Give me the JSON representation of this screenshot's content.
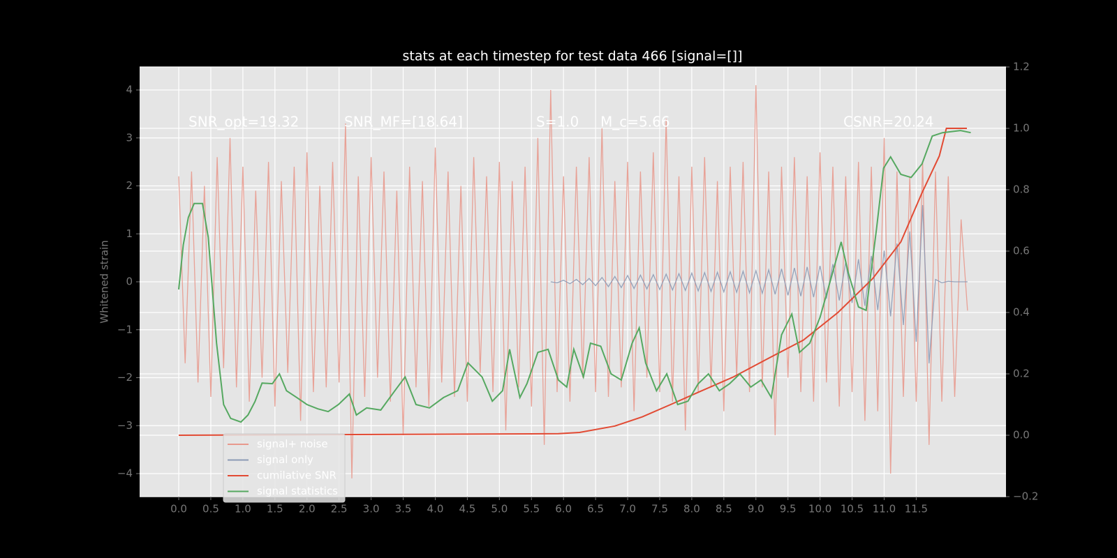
{
  "chart_data": {
    "type": "line",
    "title": "stats at each timestep for test data 466 [signal=[]]",
    "ylabel": "Whitened strain",
    "annotations": [
      "SNR_opt=19.32",
      "SNR_MF=[18.64]",
      "S=1.0",
      "M_c=5.66",
      "CSNR=20.24"
    ],
    "xlim": [
      -0.61,
      12.9
    ],
    "ylim": [
      -4.48,
      4.48
    ],
    "y2lim": [
      -0.2,
      1.2
    ],
    "xticks": [
      {
        "value": 0,
        "label": "0.0"
      },
      0.5,
      {
        "value": 1,
        "label": "1.0"
      },
      1.5,
      {
        "value": 2,
        "label": "2.0"
      },
      2.5,
      {
        "value": 3,
        "label": "3.0"
      },
      3.5,
      {
        "value": 4,
        "label": "4.0"
      },
      4.5,
      {
        "value": 5,
        "label": "5.0"
      },
      5.5,
      {
        "value": 6,
        "label": "6.0"
      },
      6.5,
      {
        "value": 7,
        "label": "7.0"
      },
      7.5,
      {
        "value": 8,
        "label": "8.0"
      },
      8.5,
      {
        "value": 9,
        "label": "9.0"
      },
      9.5,
      {
        "value": 10,
        "label": "10.0"
      },
      10.5,
      {
        "value": 11,
        "label": "11.0"
      },
      11.5
    ],
    "yticks": [
      {
        "value": -4,
        "label": "−4"
      },
      {
        "value": -3,
        "label": "−3"
      },
      {
        "value": -2,
        "label": "−2"
      },
      {
        "value": -1,
        "label": "−1"
      },
      0,
      1,
      2,
      3,
      4
    ],
    "y2ticks": [
      {
        "value": -0.2,
        "label": "−0.2"
      },
      {
        "value": 0,
        "label": "0.0"
      },
      0.2,
      0.4,
      0.6,
      0.8,
      {
        "value": 1,
        "label": "1.0"
      },
      1.2
    ],
    "grid": true,
    "legend": "lower left",
    "series": [
      {
        "name": "signal+ noise",
        "color": "#e8998d",
        "x": [
          0.0,
          0.1,
          0.2,
          0.3,
          0.4,
          0.5,
          0.6,
          0.7,
          0.8,
          0.9,
          1.0,
          1.1,
          1.2,
          1.3,
          1.4,
          1.5,
          1.6,
          1.7,
          1.8,
          1.9,
          2.0,
          2.1,
          2.2,
          2.3,
          2.4,
          2.5,
          2.6,
          2.7,
          2.8,
          2.9,
          3.0,
          3.1,
          3.2,
          3.3,
          3.4,
          3.5,
          3.6,
          3.7,
          3.8,
          3.9,
          4.0,
          4.1,
          4.2,
          4.3,
          4.4,
          4.5,
          4.6,
          4.7,
          4.8,
          4.9,
          5.0,
          5.1,
          5.2,
          5.3,
          5.4,
          5.5,
          5.6,
          5.7,
          5.8,
          5.9,
          6.0,
          6.1,
          6.2,
          6.3,
          6.4,
          6.5,
          6.6,
          6.7,
          6.8,
          6.9,
          7.0,
          7.1,
          7.2,
          7.3,
          7.4,
          7.5,
          7.6,
          7.7,
          7.8,
          7.9,
          8.0,
          8.1,
          8.2,
          8.3,
          8.4,
          8.5,
          8.6,
          8.7,
          8.8,
          8.9,
          9.0,
          9.1,
          9.2,
          9.3,
          9.4,
          9.5,
          9.6,
          9.7,
          9.8,
          9.9,
          10.0,
          10.1,
          10.2,
          10.3,
          10.4,
          10.5,
          10.6,
          10.7,
          10.8,
          10.9,
          11.0,
          11.1,
          11.2,
          11.3,
          11.4,
          11.5,
          11.6,
          11.7,
          11.8,
          11.9,
          12.0,
          12.1,
          12.2,
          12.3
        ],
        "values": [
          2.2,
          -1.7,
          2.3,
          -2.1,
          2.0,
          -2.4,
          2.6,
          -1.8,
          3.0,
          -2.2,
          2.4,
          -2.5,
          1.9,
          -2.0,
          2.5,
          -2.6,
          2.1,
          -1.9,
          2.4,
          -2.9,
          2.7,
          -2.3,
          2.0,
          -2.2,
          2.5,
          -2.1,
          3.3,
          -4.1,
          2.2,
          -2.4,
          2.6,
          -2.0,
          2.3,
          -2.5,
          1.9,
          -3.2,
          2.4,
          -2.2,
          2.1,
          -2.6,
          2.8,
          -2.1,
          2.3,
          -2.4,
          2.0,
          -2.5,
          2.6,
          -1.9,
          2.2,
          -2.3,
          2.5,
          -3.1,
          2.1,
          -2.2,
          2.4,
          -2.6,
          3.0,
          -3.4,
          4.0,
          -2.3,
          2.2,
          -2.5,
          2.4,
          -2.0,
          2.6,
          -2.3,
          3.2,
          -2.4,
          2.1,
          -2.2,
          2.5,
          -2.7,
          2.3,
          -2.0,
          2.7,
          -2.3,
          3.4,
          -2.5,
          2.2,
          -3.1,
          2.4,
          -2.3,
          2.6,
          -2.2,
          2.1,
          -2.7,
          2.4,
          -2.0,
          2.5,
          -2.3,
          4.1,
          -2.2,
          2.3,
          -3.2,
          2.4,
          -2.0,
          2.6,
          -2.3,
          2.2,
          -2.5,
          2.7,
          -2.1,
          2.4,
          -2.6,
          2.2,
          -2.3,
          2.5,
          -2.9,
          2.4,
          -2.7,
          3.0,
          -4.0,
          2.3,
          -2.4,
          2.2,
          -2.5,
          2.5,
          -3.4,
          2.3,
          -2.5,
          2.2,
          -2.4,
          1.3,
          -0.6
        ]
      },
      {
        "name": "signal only",
        "color": "#8c9ab5",
        "x": [
          5.8,
          5.9,
          6.0,
          6.1,
          6.2,
          6.3,
          6.4,
          6.5,
          6.6,
          6.7,
          6.8,
          6.9,
          7.0,
          7.1,
          7.2,
          7.3,
          7.4,
          7.5,
          7.6,
          7.7,
          7.8,
          7.9,
          8.0,
          8.1,
          8.2,
          8.3,
          8.4,
          8.5,
          8.6,
          8.7,
          8.8,
          8.9,
          9.0,
          9.1,
          9.2,
          9.3,
          9.4,
          9.5,
          9.6,
          9.7,
          9.8,
          9.9,
          10.0,
          10.1,
          10.2,
          10.3,
          10.4,
          10.5,
          10.6,
          10.7,
          10.8,
          10.9,
          11.0,
          11.1,
          11.2,
          11.3,
          11.4,
          11.5,
          11.6,
          11.7,
          11.8,
          11.9,
          12.0,
          12.1,
          12.2,
          12.3
        ],
        "values": [
          0.0,
          -0.02,
          0.03,
          -0.04,
          0.05,
          -0.06,
          0.07,
          -0.08,
          0.09,
          -0.1,
          0.11,
          -0.12,
          0.13,
          -0.14,
          0.14,
          -0.15,
          0.15,
          -0.16,
          0.16,
          -0.17,
          0.17,
          -0.18,
          0.18,
          -0.19,
          0.19,
          -0.2,
          0.2,
          -0.21,
          0.21,
          -0.22,
          0.22,
          -0.23,
          0.23,
          -0.24,
          0.25,
          -0.26,
          0.27,
          -0.28,
          0.29,
          -0.3,
          0.31,
          -0.32,
          0.33,
          -0.35,
          0.37,
          -0.39,
          0.41,
          -0.44,
          0.47,
          -0.5,
          0.54,
          -0.59,
          0.65,
          -0.72,
          0.8,
          -0.9,
          1.05,
          -1.25,
          1.6,
          -1.7,
          0.05,
          -0.02,
          0.01,
          0.0,
          0.0,
          0.0
        ]
      },
      {
        "name": "cumilative SNR",
        "color": "#e24a33",
        "axis": "y2",
        "x": [
          0.0,
          5.92,
          6.25,
          6.8,
          7.23,
          7.67,
          8.1,
          8.65,
          9.19,
          9.74,
          10.28,
          10.82,
          11.26,
          11.59,
          11.86,
          11.97,
          12.29
        ],
        "values": [
          0.0,
          0.005,
          0.009,
          0.03,
          0.06,
          0.1,
          0.14,
          0.19,
          0.25,
          0.31,
          0.4,
          0.51,
          0.63,
          0.79,
          0.91,
          1.0,
          1.0
        ]
      },
      {
        "name": "signal statistics",
        "color": "#55a860",
        "axis": "y2",
        "x": [
          0.0,
          0.07,
          0.15,
          0.24,
          0.37,
          0.46,
          0.59,
          0.7,
          0.81,
          0.97,
          1.08,
          1.19,
          1.3,
          1.46,
          1.57,
          1.68,
          1.84,
          2.0,
          2.17,
          2.33,
          2.49,
          2.66,
          2.77,
          2.93,
          3.15,
          3.37,
          3.53,
          3.7,
          3.91,
          4.13,
          4.35,
          4.51,
          4.73,
          4.89,
          5.05,
          5.16,
          5.32,
          5.43,
          5.6,
          5.76,
          5.92,
          6.05,
          6.16,
          6.31,
          6.42,
          6.58,
          6.74,
          6.9,
          7.07,
          7.18,
          7.28,
          7.45,
          7.61,
          7.78,
          7.94,
          8.1,
          8.26,
          8.43,
          8.59,
          8.75,
          8.92,
          9.08,
          9.24,
          9.4,
          9.56,
          9.68,
          9.84,
          10.0,
          10.17,
          10.33,
          10.44,
          10.6,
          10.72,
          10.88,
          10.99,
          11.1,
          11.26,
          11.42,
          11.59,
          11.75,
          11.91,
          12.19,
          12.35
        ],
        "values": [
          0.475,
          0.62,
          0.71,
          0.755,
          0.755,
          0.645,
          0.3,
          0.1,
          0.055,
          0.043,
          0.066,
          0.11,
          0.17,
          0.168,
          0.2,
          0.145,
          0.123,
          0.1,
          0.086,
          0.077,
          0.1,
          0.134,
          0.066,
          0.089,
          0.082,
          0.145,
          0.19,
          0.1,
          0.089,
          0.123,
          0.145,
          0.236,
          0.19,
          0.111,
          0.145,
          0.28,
          0.123,
          0.168,
          0.27,
          0.28,
          0.18,
          0.157,
          0.28,
          0.19,
          0.3,
          0.29,
          0.2,
          0.18,
          0.3,
          0.35,
          0.236,
          0.145,
          0.2,
          0.1,
          0.111,
          0.168,
          0.2,
          0.145,
          0.168,
          0.2,
          0.157,
          0.18,
          0.123,
          0.327,
          0.395,
          0.27,
          0.3,
          0.384,
          0.51,
          0.63,
          0.53,
          0.418,
          0.407,
          0.67,
          0.87,
          0.907,
          0.85,
          0.84,
          0.884,
          0.975,
          0.986,
          0.993,
          0.986
        ]
      }
    ]
  }
}
